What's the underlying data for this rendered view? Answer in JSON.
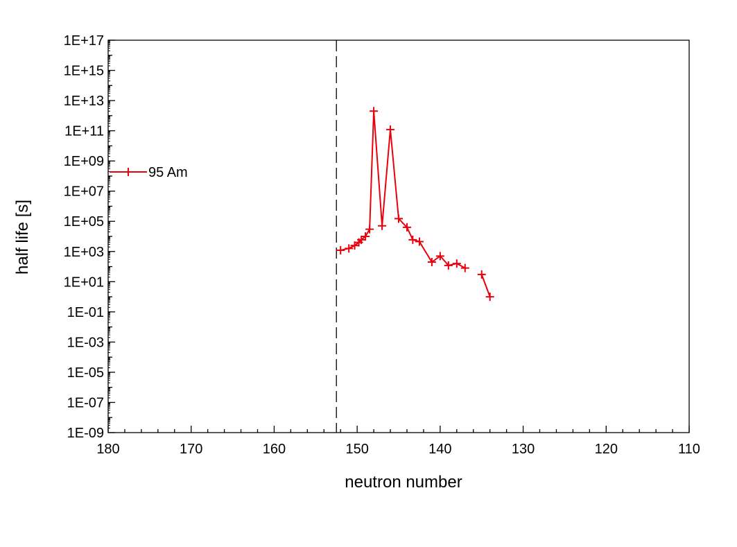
{
  "chart_data": {
    "type": "line",
    "xlabel": "neutron number",
    "ylabel": "half life [s]",
    "x_reversed": true,
    "xlim": [
      180,
      110
    ],
    "ylim_log10": [
      -9,
      17
    ],
    "y_scale": "log",
    "x_ticks": [
      "180",
      "170",
      "160",
      "150",
      "140",
      "130",
      "120",
      "110"
    ],
    "x_tick_values": [
      180,
      170,
      160,
      150,
      140,
      130,
      120,
      110
    ],
    "y_ticks": [
      "1E-09",
      "1E-07",
      "1E-05",
      "1E-03",
      "1E-01",
      "1E+01",
      "1E+03",
      "1E+05",
      "1E+07",
      "1E+09",
      "1E+11",
      "1E+13",
      "1E+15",
      "1E+17"
    ],
    "y_tick_exponents": [
      -9,
      -7,
      -5,
      -3,
      -1,
      1,
      3,
      5,
      7,
      9,
      11,
      13,
      15,
      17
    ],
    "legend": {
      "position": "left"
    },
    "reference_line": {
      "x": 152.5,
      "style": "dashed"
    },
    "grid": false,
    "series": [
      {
        "name": "95 Am",
        "color": "#e8000b",
        "marker": "plus",
        "segments": [
          [
            [
              152,
              1200
            ],
            [
              151,
              1600
            ],
            [
              150.3,
              2500
            ],
            [
              149.8,
              4000
            ],
            [
              149.5,
              6000
            ],
            [
              149,
              10000
            ],
            [
              148.5,
              30000
            ],
            [
              148,
              2000000000000
            ],
            [
              147,
              50000
            ],
            [
              146,
              120000000000
            ],
            [
              145,
              150000
            ],
            [
              144,
              40000
            ],
            [
              143.3,
              6000
            ],
            [
              142.5,
              4500
            ],
            [
              141,
              200
            ],
            [
              140,
              500
            ],
            [
              139,
              120
            ],
            [
              138,
              160
            ],
            [
              137,
              80
            ]
          ],
          [
            [
              135,
              30
            ],
            [
              134,
              1
            ]
          ]
        ]
      }
    ]
  }
}
